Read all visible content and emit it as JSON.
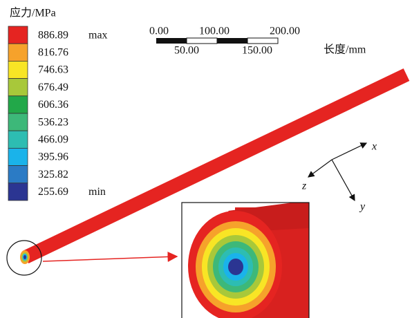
{
  "legend": {
    "title": "应力/MPa",
    "items": [
      {
        "value": "886.89",
        "note": "max",
        "color": "#e52421"
      },
      {
        "value": "816.76",
        "color": "#f6a22b"
      },
      {
        "value": "746.63",
        "color": "#f8e525"
      },
      {
        "value": "676.49",
        "color": "#a8c83a"
      },
      {
        "value": "606.36",
        "color": "#22a849"
      },
      {
        "value": "536.23",
        "color": "#3db879"
      },
      {
        "value": "466.09",
        "color": "#2dbdb2"
      },
      {
        "value": "395.96",
        "color": "#1ab3ea"
      },
      {
        "value": "325.82",
        "color": "#2b7bc5"
      },
      {
        "value": "255.69",
        "note": "min",
        "color": "#2b3592"
      }
    ]
  },
  "scale_bar": {
    "top": [
      "0.00",
      "100.00",
      "200.00"
    ],
    "bottom": [
      "50.00",
      "150.00"
    ],
    "unit": "长度/mm"
  },
  "axes": {
    "x": "x",
    "y": "y",
    "z": "z"
  }
}
